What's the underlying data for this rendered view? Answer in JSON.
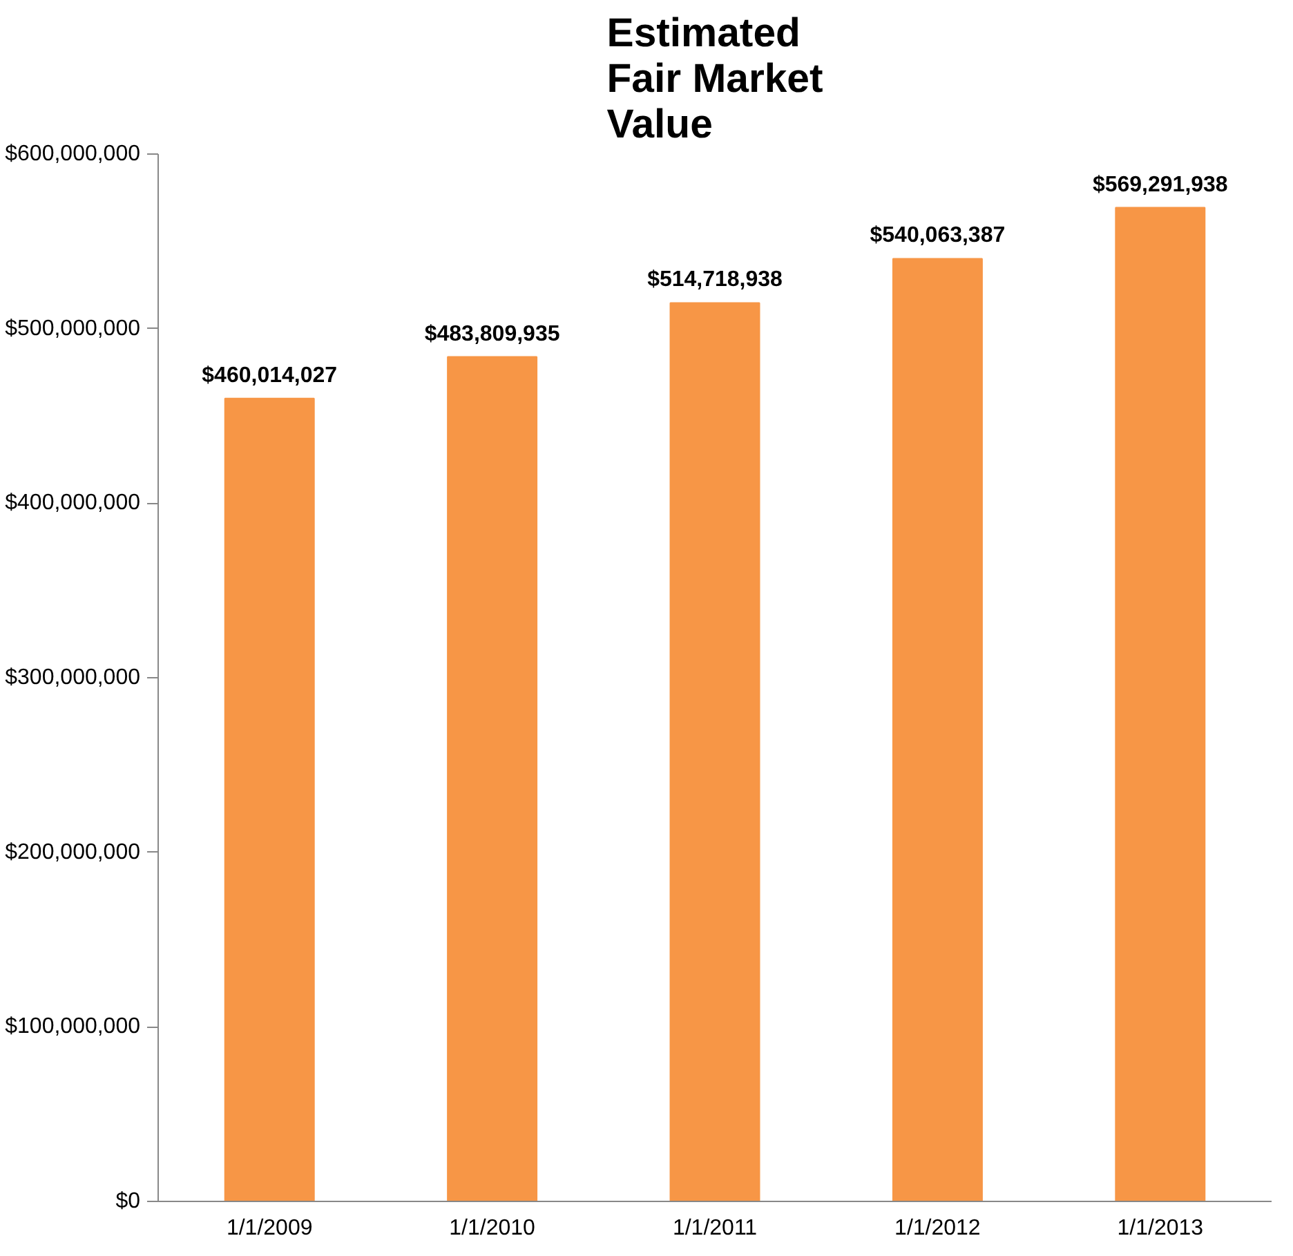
{
  "chart_data": {
    "type": "bar",
    "title": "Estimated Fair Market Value",
    "categories": [
      "1/1/2009",
      "1/1/2010",
      "1/1/2011",
      "1/1/2012",
      "1/1/2013"
    ],
    "values": [
      460014027,
      483809935,
      514718938,
      540063387,
      569291938
    ],
    "value_labels": [
      "$460,014,027",
      "$483,809,935",
      "$514,718,938",
      "$540,063,387",
      "$569,291,938"
    ],
    "color": "#f79646",
    "ylim": [
      0,
      600000000
    ],
    "yticks": [
      {
        "value": 0,
        "label": "$0"
      },
      {
        "value": 100000000,
        "label": "$100,000,000"
      },
      {
        "value": 200000000,
        "label": "$200,000,000"
      },
      {
        "value": 300000000,
        "label": "$300,000,000"
      },
      {
        "value": 400000000,
        "label": "$400,000,000"
      },
      {
        "value": 500000000,
        "label": "$500,000,000"
      },
      {
        "value": 600000000,
        "label": "$600,000,000"
      }
    ],
    "grid": false
  }
}
